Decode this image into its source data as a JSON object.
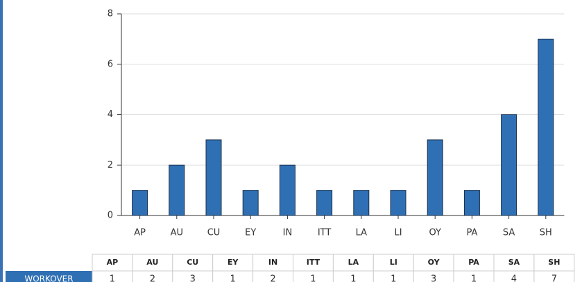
{
  "chart_data": {
    "type": "bar",
    "categories": [
      "AP",
      "AU",
      "CU",
      "EY",
      "IN",
      "ITT",
      "LA",
      "LI",
      "OY",
      "PA",
      "SA",
      "SH"
    ],
    "series": [
      {
        "name": "WORKOVER",
        "color": "#2f70b4",
        "values": [
          1,
          2,
          3,
          1,
          2,
          1,
          1,
          1,
          3,
          1,
          4,
          7
        ]
      }
    ],
    "ylim": [
      0,
      8
    ],
    "yticks": [
      0,
      2,
      4,
      6,
      8
    ],
    "grid": true
  }
}
